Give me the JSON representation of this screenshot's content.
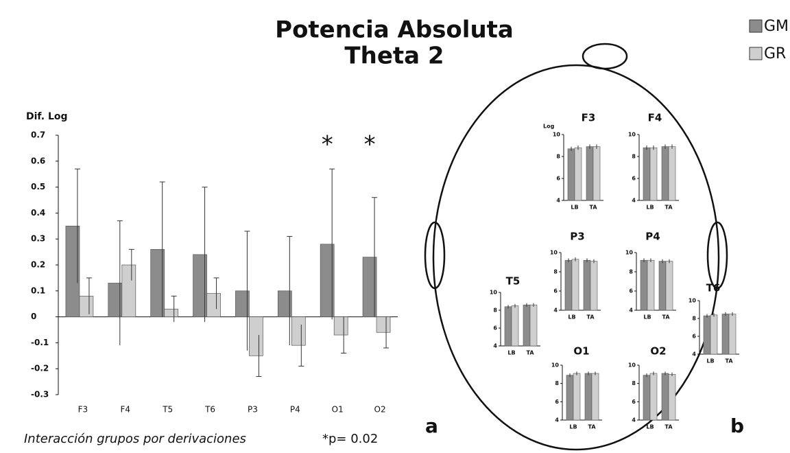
{
  "chart_data": [
    {
      "type": "bar",
      "title": "Potencia Absoluta",
      "subtitle": "Theta 2",
      "ylabel": "Dif. Log",
      "categories": [
        "F3",
        "F4",
        "T5",
        "T6",
        "P3",
        "P4",
        "O1",
        "O2"
      ],
      "series": [
        {
          "name": "GM",
          "color": "#8c8c8c",
          "values": [
            0.35,
            0.13,
            0.26,
            0.24,
            0.1,
            0.1,
            0.28,
            0.23
          ],
          "errors": [
            0.22,
            0.24,
            0.26,
            0.26,
            0.23,
            0.21,
            0.29,
            0.23
          ]
        },
        {
          "name": "GR",
          "color": "#cfcfcf",
          "values": [
            0.08,
            0.2,
            0.03,
            0.09,
            -0.15,
            -0.11,
            -0.07,
            -0.06
          ],
          "errors": [
            0.07,
            0.06,
            0.05,
            0.06,
            0.08,
            0.08,
            0.07,
            0.06
          ]
        }
      ],
      "significance": [
        null,
        null,
        null,
        null,
        null,
        null,
        "*",
        "*"
      ],
      "ylim": [
        -0.3,
        0.7
      ],
      "yticks": [
        -0.3,
        -0.2,
        -0.1,
        0,
        0.1,
        0.2,
        0.3,
        0.4,
        0.5,
        0.6,
        0.7
      ],
      "footnote": "Interacción grupos por derivaciones",
      "note": "*p= 0.02",
      "panel_label": "a"
    },
    {
      "type": "head",
      "panel_label": "b",
      "ylabel": "Log",
      "ylim": [
        4,
        10
      ],
      "yticks": [
        4,
        6,
        8,
        10
      ],
      "charts": [
        {
          "title": "F3",
          "categories": [
            "LB",
            "TA"
          ],
          "series": [
            {
              "values": [
                8.7,
                8.9
              ],
              "errors": [
                0.2,
                0.2
              ]
            },
            {
              "values": [
                8.8,
                8.9
              ],
              "errors": [
                0.2,
                0.2
              ]
            }
          ]
        },
        {
          "title": "F4",
          "categories": [
            "LB",
            "TA"
          ],
          "series": [
            {
              "values": [
                8.8,
                8.9
              ],
              "errors": [
                0.2,
                0.2
              ]
            },
            {
              "values": [
                8.8,
                8.9
              ],
              "errors": [
                0.2,
                0.2
              ]
            }
          ]
        },
        {
          "title": "P3",
          "categories": [
            "LB",
            "TA"
          ],
          "series": [
            {
              "values": [
                9.2,
                9.2
              ],
              "errors": [
                0.2,
                0.2
              ]
            },
            {
              "values": [
                9.3,
                9.1
              ],
              "errors": [
                0.2,
                0.2
              ]
            }
          ]
        },
        {
          "title": "P4",
          "categories": [
            "LB",
            "TA"
          ],
          "series": [
            {
              "values": [
                9.2,
                9.1
              ],
              "errors": [
                0.2,
                0.2
              ]
            },
            {
              "values": [
                9.2,
                9.1
              ],
              "errors": [
                0.2,
                0.2
              ]
            }
          ]
        },
        {
          "title": "T5",
          "categories": [
            "LB",
            "TA"
          ],
          "series": [
            {
              "values": [
                8.4,
                8.6
              ],
              "errors": [
                0.2,
                0.2
              ]
            },
            {
              "values": [
                8.5,
                8.6
              ],
              "errors": [
                0.2,
                0.2
              ]
            }
          ]
        },
        {
          "title": "T6",
          "categories": [
            "LB",
            "TA"
          ],
          "series": [
            {
              "values": [
                8.3,
                8.5
              ],
              "errors": [
                0.2,
                0.2
              ]
            },
            {
              "values": [
                8.4,
                8.5
              ],
              "errors": [
                0.2,
                0.2
              ]
            }
          ]
        },
        {
          "title": "O1",
          "categories": [
            "LB",
            "TA"
          ],
          "series": [
            {
              "values": [
                8.9,
                9.1
              ],
              "errors": [
                0.2,
                0.2
              ]
            },
            {
              "values": [
                9.1,
                9.1
              ],
              "errors": [
                0.2,
                0.2
              ]
            }
          ]
        },
        {
          "title": "O2",
          "categories": [
            "LB",
            "TA"
          ],
          "series": [
            {
              "values": [
                8.9,
                9.1
              ],
              "errors": [
                0.2,
                0.2
              ]
            },
            {
              "values": [
                9.1,
                9.0
              ],
              "errors": [
                0.2,
                0.2
              ]
            }
          ]
        }
      ]
    }
  ]
}
